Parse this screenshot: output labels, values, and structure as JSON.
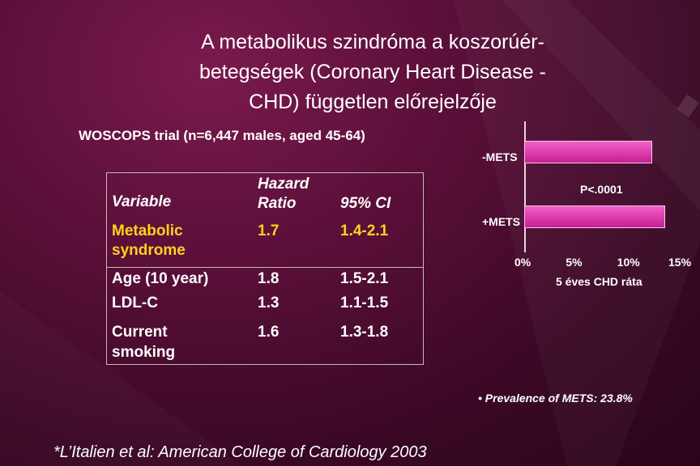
{
  "slide": {
    "title_lines": [
      "A metabolikus szindróma a koszorúér-",
      "betegségek (Coronary Heart Disease -",
      "CHD) független előrejelzője"
    ],
    "subtitle": "WOSCOPS trial (n=6,447 males, aged 45-64)",
    "footnote": "*L’Italien et al: American College of Cardiology 2003",
    "prevalence_bullet": "•",
    "prevalence": "Prevalence of METS: 23.8%"
  },
  "table": {
    "headers": {
      "variable": "Variable",
      "hazard_line1": "Hazard",
      "hazard_line2": "Ratio",
      "ci": "95% CI"
    },
    "rows": [
      {
        "variable_lines": [
          "Metabolic",
          "syndrome"
        ],
        "hr": "1.7",
        "ci": "1.4-2.1",
        "highlight": true
      },
      {
        "variable_lines": [
          "Age (10 year)"
        ],
        "hr": "1.8",
        "ci": "1.5-2.1",
        "highlight": false
      },
      {
        "variable_lines": [
          "LDL-C"
        ],
        "hr": "1.3",
        "ci": "1.1-1.5",
        "highlight": false
      },
      {
        "variable_lines": [
          "Current",
          "smoking"
        ],
        "hr": "1.6",
        "ci": "1.3-1.8",
        "highlight": false
      }
    ],
    "highlight_color": "#ffd21a"
  },
  "chart_data": {
    "type": "bar",
    "orientation": "horizontal",
    "categories": [
      "-METS",
      "+METS"
    ],
    "values": [
      12.5,
      13.7
    ],
    "xlim": [
      0,
      15
    ],
    "xticks": [
      "0%",
      "5%",
      "10%",
      "15%"
    ],
    "xlabel": "5 éves CHD ráta",
    "annotation": "P<.0001",
    "bar_color": "#e040b8"
  }
}
